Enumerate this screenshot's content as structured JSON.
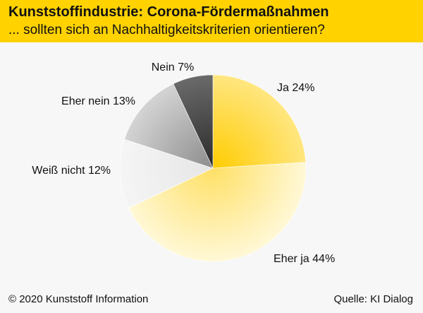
{
  "header": {
    "title": "Kunststoffindustrie: Corona-Fördermaßnahmen",
    "subtitle": "... sollten sich an Nachhaltigkeitskriterien orientieren?",
    "accent_color": "#ffd200"
  },
  "footer": {
    "copyright": "© 2020 Kunststoff Information",
    "source": "Quelle: KI Dialog"
  },
  "chart_data": {
    "type": "pie",
    "title": "Kunststoffindustrie: Corona-Fördermaßnahmen",
    "subtitle": "... sollten sich an Nachhaltigkeitskriterien orientieren?",
    "unit": "%",
    "slices": [
      {
        "key": "ja",
        "label": "Ja 24%",
        "value": 24,
        "color": "#ffcc00"
      },
      {
        "key": "eher_ja",
        "label": "Eher ja 44%",
        "value": 44,
        "color": "#ffe066"
      },
      {
        "key": "weiss_nicht",
        "label": "Weiß nicht 12%",
        "value": 12,
        "color": "#e6e6e6"
      },
      {
        "key": "eher_nein",
        "label": "Eher nein 13%",
        "value": 13,
        "color": "#8c8c8c"
      },
      {
        "key": "nein",
        "label": "Nein 7%",
        "value": 7,
        "color": "#2a2a2a"
      }
    ]
  }
}
